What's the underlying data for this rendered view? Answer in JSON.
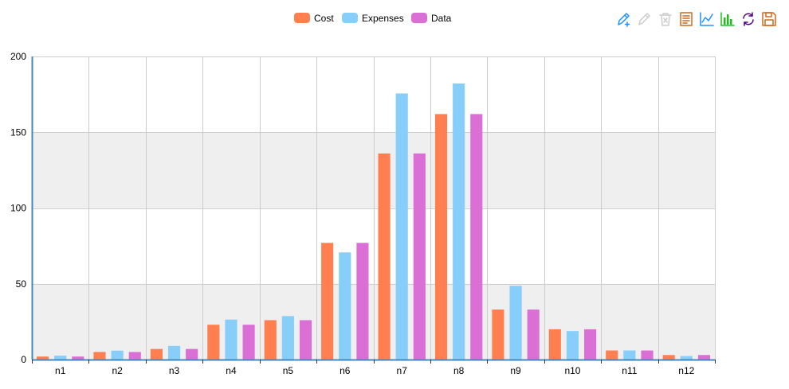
{
  "chart_data": {
    "type": "bar",
    "title": "",
    "xlabel": "",
    "ylabel": "",
    "categories": [
      "n1",
      "n2",
      "n3",
      "n4",
      "n5",
      "n6",
      "n7",
      "n8",
      "n9",
      "n10",
      "n11",
      "n12"
    ],
    "series": [
      {
        "name": "Cost",
        "color": "#ff7f50",
        "values": [
          2,
          5,
          7,
          23,
          26,
          77,
          136,
          162,
          33,
          20,
          6,
          3
        ]
      },
      {
        "name": "Expenses",
        "color": "#87cefa",
        "values": [
          2.6,
          5.9,
          9,
          26.4,
          28.7,
          70.7,
          175.6,
          182.2,
          48.7,
          18.8,
          6,
          2.3
        ]
      },
      {
        "name": "Data",
        "color": "#da70d6",
        "values": [
          2,
          5,
          7,
          23,
          26,
          77,
          136,
          162,
          33,
          20,
          6,
          3
        ]
      }
    ],
    "ylim": [
      0,
      200
    ],
    "yticks": [
      0,
      50,
      100,
      150,
      200
    ],
    "grid": true,
    "legend_position": "top-center"
  },
  "toolbox": {
    "items": [
      {
        "name": "data-zoom-icon",
        "color": "#1e90ff"
      },
      {
        "name": "zoom-reset-icon",
        "color": "#cccccc"
      },
      {
        "name": "clear-icon",
        "color": "#cccccc"
      },
      {
        "name": "data-view-icon",
        "color": "#d2691e"
      },
      {
        "name": "line-chart-icon",
        "color": "#1e90ff"
      },
      {
        "name": "bar-chart-icon",
        "color": "#22bb22"
      },
      {
        "name": "restore-icon",
        "color": "#4b0082"
      },
      {
        "name": "save-image-icon",
        "color": "#d2691e"
      }
    ]
  },
  "colors": {
    "band": "#efefef",
    "grid": "#cccccc",
    "axis": "#48b"
  }
}
